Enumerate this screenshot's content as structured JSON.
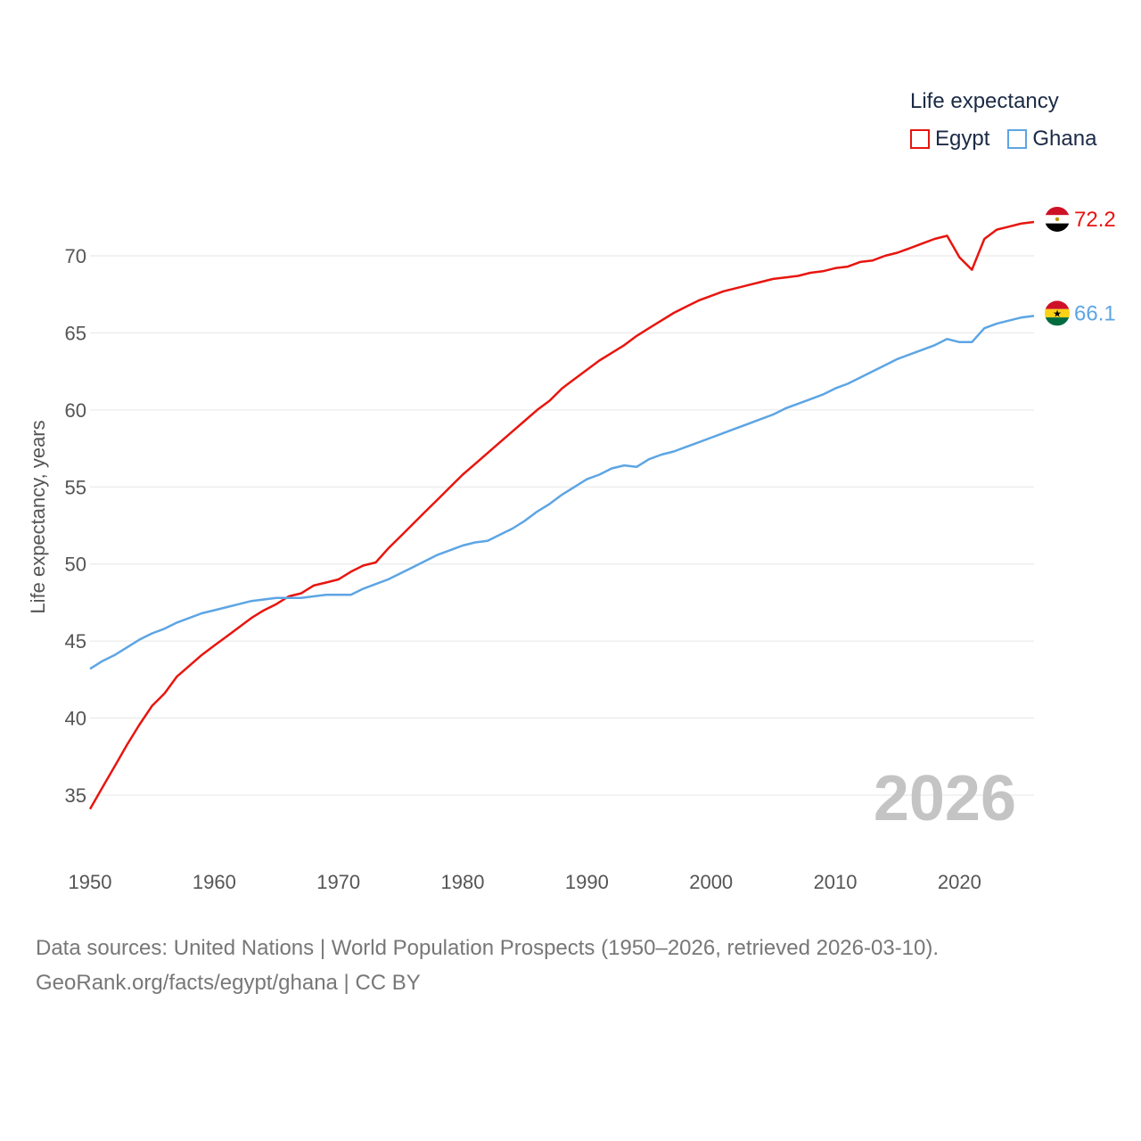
{
  "legend": {
    "title": "Life expectancy",
    "items": [
      {
        "name": "Egypt",
        "color": "#e8150f"
      },
      {
        "name": "Ghana",
        "color": "#5da5e4"
      }
    ]
  },
  "watermark_year": "2026",
  "sources": {
    "line1": "Data sources: United Nations | World Population Prospects (1950–2026, retrieved 2026-03-10).",
    "line2": "GeoRank.org/facts/egypt/ghana | CC BY"
  },
  "chart_data": {
    "type": "line",
    "title": "Life expectancy",
    "xlabel": "",
    "ylabel": "Life expectancy, years",
    "xlim": [
      1950,
      2026
    ],
    "ylim": [
      32.5,
      72.5
    ],
    "xticks": [
      1950,
      1960,
      1970,
      1980,
      1990,
      2000,
      2010,
      2020
    ],
    "yticks": [
      35,
      40,
      45,
      50,
      55,
      60,
      65,
      70
    ],
    "grid": true,
    "x": [
      1950,
      1951,
      1952,
      1953,
      1954,
      1955,
      1956,
      1957,
      1958,
      1959,
      1960,
      1961,
      1962,
      1963,
      1964,
      1965,
      1966,
      1967,
      1968,
      1969,
      1970,
      1971,
      1972,
      1973,
      1974,
      1975,
      1976,
      1977,
      1978,
      1979,
      1980,
      1981,
      1982,
      1983,
      1984,
      1985,
      1986,
      1987,
      1988,
      1989,
      1990,
      1991,
      1992,
      1993,
      1994,
      1995,
      1996,
      1997,
      1998,
      1999,
      2000,
      2001,
      2002,
      2003,
      2004,
      2005,
      2006,
      2007,
      2008,
      2009,
      2010,
      2011,
      2012,
      2013,
      2014,
      2015,
      2016,
      2017,
      2018,
      2019,
      2020,
      2021,
      2022,
      2023,
      2024,
      2025,
      2026
    ],
    "series": [
      {
        "name": "Egypt",
        "color": "#e8150f",
        "end_label": "72.2",
        "values": [
          34.1,
          35.5,
          36.9,
          38.3,
          39.6,
          40.8,
          41.6,
          42.7,
          43.4,
          44.1,
          44.7,
          45.3,
          45.9,
          46.5,
          47.0,
          47.4,
          47.9,
          48.1,
          48.6,
          48.8,
          49.0,
          49.5,
          49.9,
          50.1,
          51.0,
          51.8,
          52.6,
          53.4,
          54.2,
          55.0,
          55.8,
          56.5,
          57.2,
          57.9,
          58.6,
          59.3,
          60.0,
          60.6,
          61.4,
          62.0,
          62.6,
          63.2,
          63.7,
          64.2,
          64.8,
          65.3,
          65.8,
          66.3,
          66.7,
          67.1,
          67.4,
          67.7,
          67.9,
          68.1,
          68.3,
          68.5,
          68.6,
          68.7,
          68.9,
          69.0,
          69.2,
          69.3,
          69.6,
          69.7,
          70.0,
          70.2,
          70.5,
          70.8,
          71.1,
          71.3,
          69.9,
          69.1,
          71.1,
          71.7,
          71.9,
          72.1,
          72.2
        ]
      },
      {
        "name": "Ghana",
        "color": "#5da5e4",
        "end_label": "66.1",
        "values": [
          43.2,
          43.7,
          44.1,
          44.6,
          45.1,
          45.5,
          45.8,
          46.2,
          46.5,
          46.8,
          47.0,
          47.2,
          47.4,
          47.6,
          47.7,
          47.8,
          47.8,
          47.8,
          47.9,
          48.0,
          48.0,
          48.0,
          48.4,
          48.7,
          49.0,
          49.4,
          49.8,
          50.2,
          50.6,
          50.9,
          51.2,
          51.4,
          51.5,
          51.9,
          52.3,
          52.8,
          53.4,
          53.9,
          54.5,
          55.0,
          55.5,
          55.8,
          56.2,
          56.4,
          56.3,
          56.8,
          57.1,
          57.3,
          57.6,
          57.9,
          58.2,
          58.5,
          58.8,
          59.1,
          59.4,
          59.7,
          60.1,
          60.4,
          60.7,
          61.0,
          61.4,
          61.7,
          62.1,
          62.5,
          62.9,
          63.3,
          63.6,
          63.9,
          64.2,
          64.6,
          64.4,
          64.4,
          65.3,
          65.6,
          65.8,
          66.0,
          66.1
        ]
      }
    ]
  }
}
